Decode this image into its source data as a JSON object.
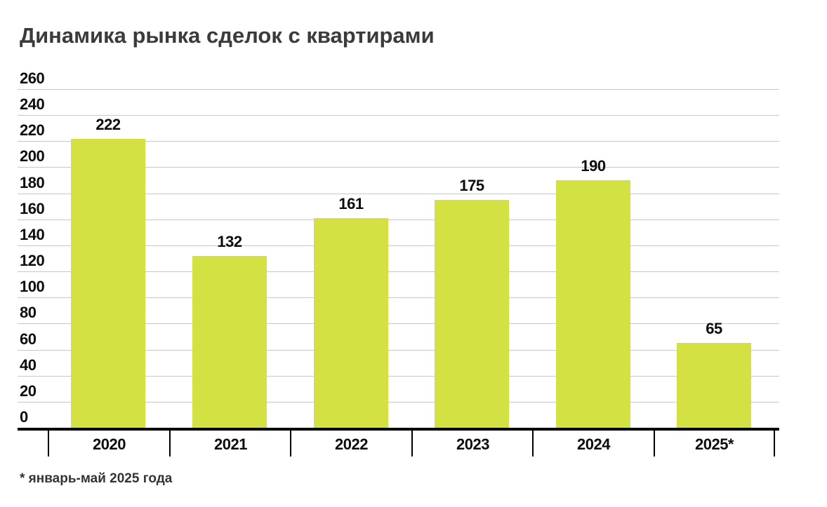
{
  "chart_data": {
    "type": "bar",
    "title": "Динамика рынка сделок с квартирами",
    "categories": [
      "2020",
      "2021",
      "2022",
      "2023",
      "2024",
      "2025*"
    ],
    "values": [
      222,
      132,
      161,
      175,
      190,
      65
    ],
    "y_ticks": [
      260,
      240,
      220,
      200,
      180,
      160,
      140,
      120,
      100,
      80,
      60,
      40,
      20,
      0
    ],
    "ylim": [
      0,
      260
    ],
    "grid": "horizontal-light-gray",
    "legend": "none",
    "bar_color": "#d4e143",
    "gridline_color": "#c7c7c7",
    "axis_color": "#000000",
    "title_color": "#3b3b3b",
    "label_color": "#0d0d0d",
    "footnote": "* январь-май 2025 года"
  }
}
